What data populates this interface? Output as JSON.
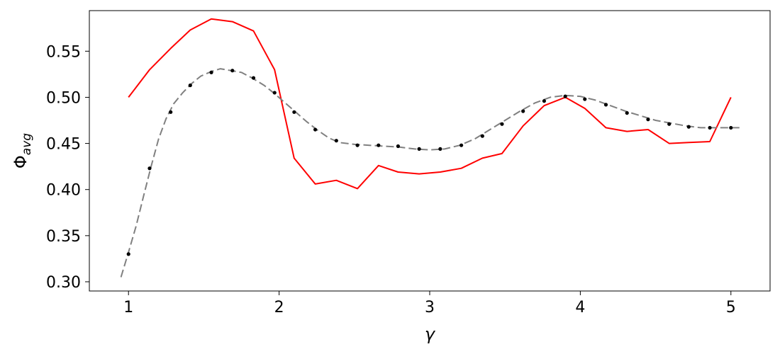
{
  "chart_data": {
    "type": "line",
    "xlabel": "γ",
    "ylabel_main": "Φ",
    "ylabel_sub": "avg",
    "xlim": [
      0.74,
      5.26
    ],
    "ylim": [
      0.29,
      0.594
    ],
    "xticks": [
      1,
      2,
      3,
      4,
      5
    ],
    "xtick_labels": [
      "1",
      "2",
      "3",
      "4",
      "5"
    ],
    "yticks": [
      0.3,
      0.35,
      0.4,
      0.45,
      0.5,
      0.55
    ],
    "ytick_labels": [
      "0.30",
      "0.35",
      "0.40",
      "0.45",
      "0.50",
      "0.55"
    ],
    "grid": false,
    "legend": "none",
    "series": [
      {
        "style": "solid",
        "color": "#ff0000",
        "x": [
          1.0,
          1.14,
          1.28,
          1.41,
          1.55,
          1.69,
          1.83,
          1.97,
          2.1,
          2.24,
          2.38,
          2.52,
          2.66,
          2.79,
          2.93,
          3.07,
          3.21,
          3.35,
          3.48,
          3.62,
          3.76,
          3.9,
          4.03,
          4.17,
          4.31,
          4.45,
          4.59,
          4.72,
          4.86,
          5.0
        ],
        "y": [
          0.5,
          0.53,
          0.553,
          0.573,
          0.585,
          0.582,
          0.572,
          0.53,
          0.434,
          0.406,
          0.41,
          0.401,
          0.426,
          0.419,
          0.417,
          0.419,
          0.423,
          0.434,
          0.439,
          0.469,
          0.491,
          0.5,
          0.488,
          0.467,
          0.463,
          0.465,
          0.45,
          0.451,
          0.452,
          0.5
        ]
      },
      {
        "style": "dashed",
        "color": "#808080",
        "x": [
          0.95,
          1.0,
          1.05,
          1.1,
          1.15,
          1.2,
          1.25,
          1.3,
          1.36,
          1.42,
          1.48,
          1.55,
          1.61,
          1.68,
          1.75,
          1.82,
          1.9,
          1.97,
          2.04,
          2.11,
          2.18,
          2.25,
          2.33,
          2.4,
          2.5,
          2.6,
          2.7,
          2.8,
          2.9,
          3.0,
          3.1,
          3.2,
          3.3,
          3.4,
          3.5,
          3.6,
          3.7,
          3.8,
          3.9,
          4.0,
          4.1,
          4.2,
          4.3,
          4.4,
          4.5,
          4.6,
          4.7,
          4.8,
          4.9,
          5.0,
          5.07
        ],
        "y": [
          0.305,
          0.332,
          0.36,
          0.393,
          0.425,
          0.455,
          0.477,
          0.493,
          0.505,
          0.515,
          0.523,
          0.528,
          0.531,
          0.529,
          0.527,
          0.521,
          0.513,
          0.504,
          0.494,
          0.484,
          0.474,
          0.465,
          0.456,
          0.451,
          0.449,
          0.448,
          0.447,
          0.446,
          0.444,
          0.443,
          0.444,
          0.448,
          0.455,
          0.465,
          0.475,
          0.485,
          0.494,
          0.5,
          0.502,
          0.501,
          0.497,
          0.491,
          0.485,
          0.48,
          0.475,
          0.472,
          0.469,
          0.467,
          0.467,
          0.467,
          0.467
        ]
      },
      {
        "style": "markers",
        "color": "#000000",
        "x": [
          1.0,
          1.14,
          1.28,
          1.41,
          1.55,
          1.69,
          1.83,
          1.97,
          2.1,
          2.24,
          2.38,
          2.52,
          2.66,
          2.79,
          2.93,
          3.07,
          3.21,
          3.35,
          3.48,
          3.62,
          3.76,
          3.9,
          4.03,
          4.17,
          4.31,
          4.45,
          4.59,
          4.72,
          4.86,
          5.0
        ],
        "y": [
          0.33,
          0.423,
          0.484,
          0.513,
          0.527,
          0.529,
          0.521,
          0.505,
          0.484,
          0.465,
          0.453,
          0.448,
          0.448,
          0.447,
          0.444,
          0.444,
          0.448,
          0.458,
          0.471,
          0.485,
          0.496,
          0.501,
          0.498,
          0.492,
          0.483,
          0.476,
          0.471,
          0.468,
          0.467,
          0.467
        ]
      }
    ]
  }
}
